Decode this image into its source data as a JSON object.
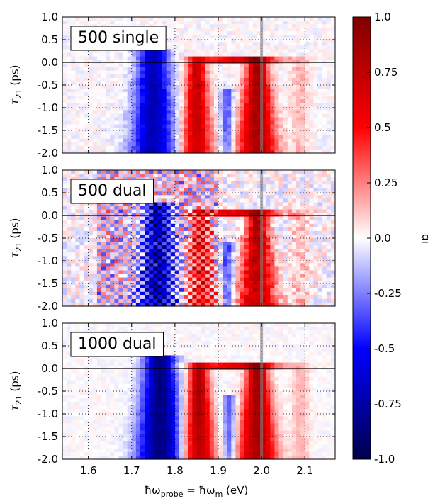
{
  "chart_data": {
    "type": "heatmap",
    "x": {
      "label_text": "ħω",
      "label_sub": "probe",
      "label_mid": " = ħω",
      "label_sub2": "m",
      "label_unit": " (eV)",
      "ticks": [
        "1.6",
        "1.7",
        "1.8",
        "1.9",
        "2.0",
        "2.1"
      ],
      "tick_values": [
        1.6,
        1.7,
        1.8,
        1.9,
        2.0,
        2.1
      ],
      "xlim": [
        1.54,
        2.17
      ]
    },
    "y": {
      "label_text": "τ",
      "label_sub": "21",
      "label_unit": " (ps)",
      "ticks": [
        "1.0",
        "0.5",
        "0.0",
        "-0.5",
        "-1.0",
        "-1.5",
        "-2.0"
      ],
      "tick_values": [
        1.0,
        0.5,
        0.0,
        -0.5,
        -1.0,
        -1.5,
        -2.0
      ],
      "ylim": [
        -2.0,
        1.0
      ]
    },
    "colorbar": {
      "label": "dI",
      "ticks": [
        "1.0",
        "0.75",
        "0.5",
        "0.25",
        "0.0",
        "-0.25",
        "-0.5",
        "-0.75",
        "-1.0"
      ],
      "tick_values": [
        1.0,
        0.75,
        0.5,
        0.25,
        0.0,
        -0.25,
        -0.5,
        -0.75,
        -1.0
      ],
      "range": [
        -1.0,
        1.0
      ],
      "colormap": "seismic"
    },
    "vertical_marker": 2.0,
    "horizontal_marker": 0.0,
    "panels": [
      {
        "label": "500 single",
        "features": {
          "neg_center": 1.75,
          "neg_width": 0.035,
          "neg_amp": -0.7,
          "pos1_center": 1.85,
          "pos1_amp": 0.75,
          "pos2_center": 1.99,
          "pos2_amp": 0.9,
          "dip_center": 1.92,
          "noise": 0.06,
          "checker": 0.0
        }
      },
      {
        "label": "500 dual",
        "features": {
          "neg_center": 1.76,
          "neg_width": 0.03,
          "neg_amp": -0.75,
          "pos1_center": 1.86,
          "pos1_amp": 0.55,
          "pos2_center": 1.99,
          "pos2_amp": 0.8,
          "dip_center": 1.92,
          "noise": 0.12,
          "checker": 0.35
        }
      },
      {
        "label": "1000 dual",
        "features": {
          "neg_center": 1.765,
          "neg_width": 0.035,
          "neg_amp": -0.85,
          "pos1_center": 1.855,
          "pos1_amp": 0.85,
          "pos2_center": 1.99,
          "pos2_amp": 0.9,
          "dip_center": 1.925,
          "noise": 0.04,
          "checker": 0.0
        }
      }
    ]
  }
}
